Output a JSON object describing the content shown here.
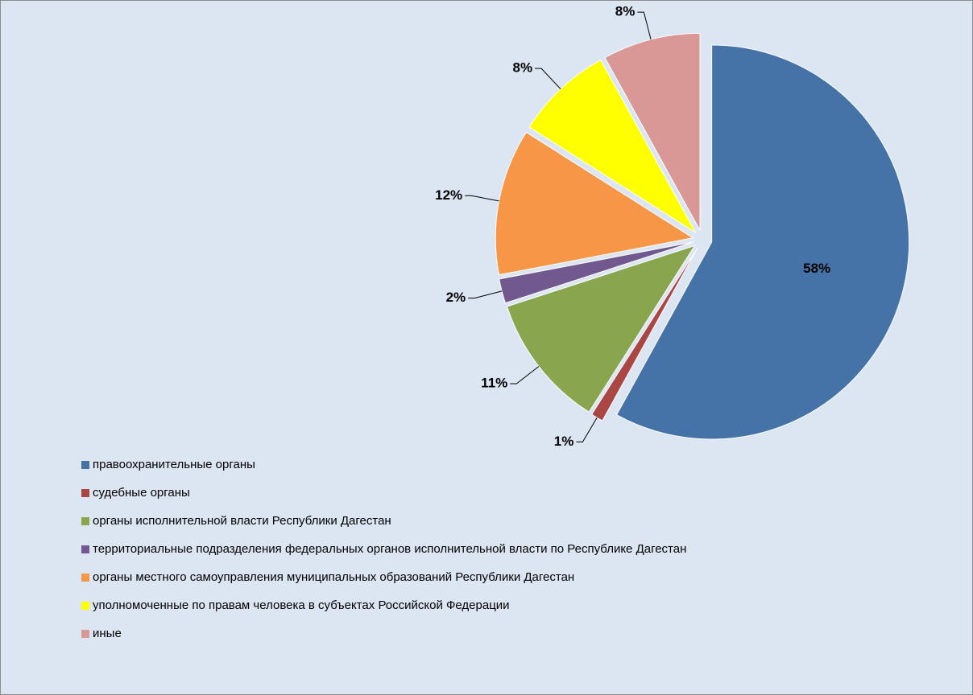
{
  "chart_data": {
    "type": "pie",
    "categories": [
      "правоохранительные органы",
      "судебные органы",
      "органы исполнительной власти  Республики Дагестан",
      "территориальные  подразделения  федеральных органов  исполнительной власти по Республике Дагестан",
      "органы местного самоуправления  муниципальных  образований  Республики Дагестан",
      "уполномоченные по правам человека в субъектах  Российской Федерации",
      "иные"
    ],
    "values": [
      58,
      1,
      11,
      2,
      12,
      8,
      8
    ],
    "value_labels": [
      "58%",
      "1%",
      "11%",
      "2%",
      "12%",
      "8%",
      "8%"
    ],
    "colors": [
      "#4572a7",
      "#aa4643",
      "#89a54e",
      "#71588f",
      "#f79646",
      "#ffff00",
      "#d99795"
    ],
    "legend": "bottom-left"
  }
}
